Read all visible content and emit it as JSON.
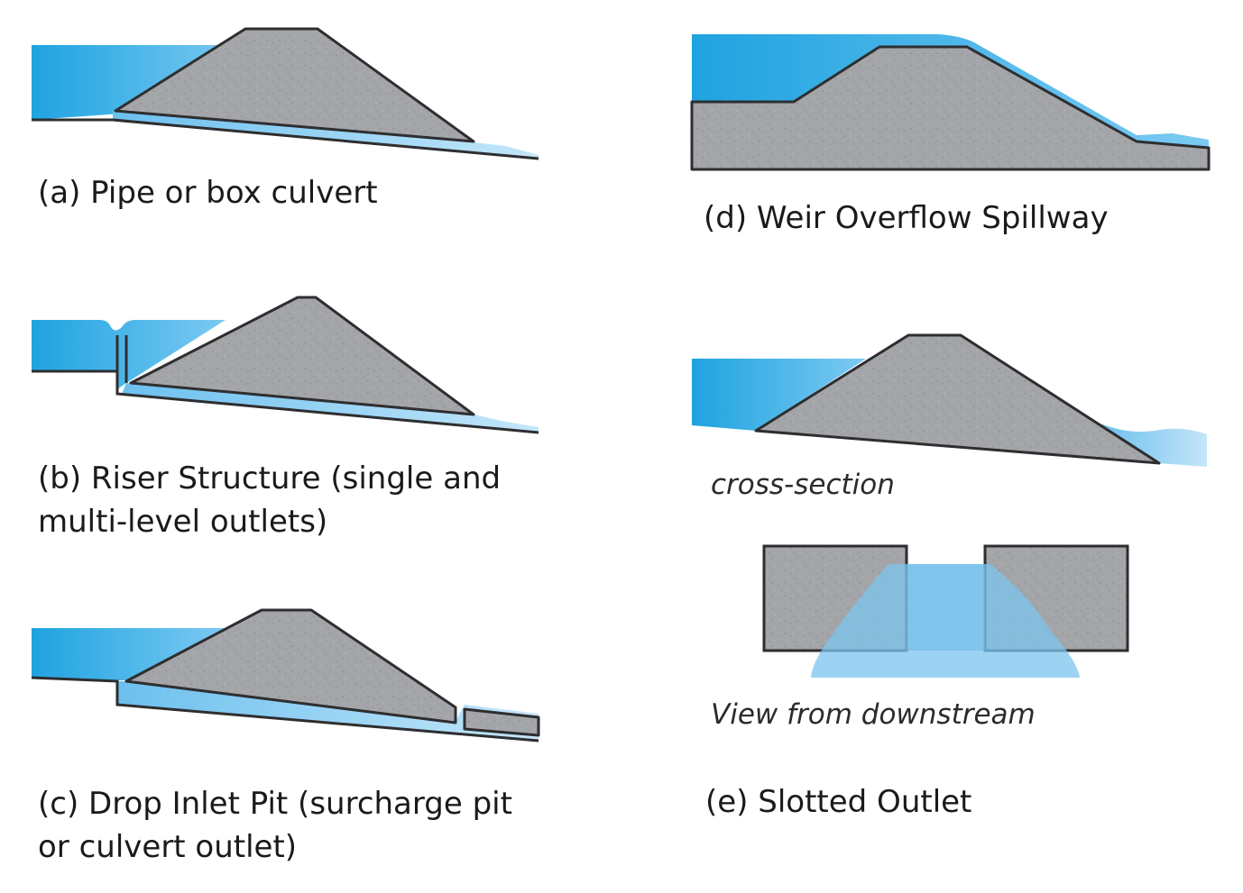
{
  "panels": {
    "a": {
      "caption": "(a) Pipe or box culvert"
    },
    "b": {
      "caption_line1": "(b) Riser Structure (single and",
      "caption_line2": "multi-level outlets)"
    },
    "c": {
      "caption_line1": "(c) Drop Inlet Pit (surcharge pit",
      "caption_line2": "or culvert outlet)"
    },
    "d": {
      "caption": "(d) Weir Overflow Spillway"
    },
    "e": {
      "caption": "(e) Slotted Outlet",
      "cross_section_label": "cross-section",
      "view_label": "View from downstream"
    }
  },
  "colors": {
    "water_deep": "#1fa3e0",
    "water_light": "#6cc0ee",
    "water_pale": "#a9d8f5",
    "embankment_fill": "#a3a5a8",
    "embankment_outline": "#2e2e30",
    "slot_flow": "#7cc4ee"
  }
}
